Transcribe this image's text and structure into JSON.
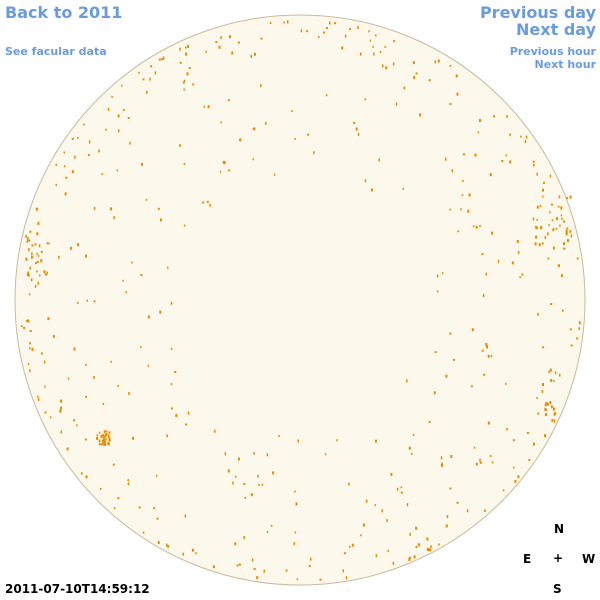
{
  "navigation": {
    "back": "Back to 2011",
    "facular": "See facular data",
    "previous_day": "Previous day",
    "next_day": "Next day",
    "previous_hour": "Previous hour",
    "next_hour": "Next hour"
  },
  "compass": {
    "north": "N",
    "east": "E",
    "center": "+",
    "west": "W",
    "south": "S"
  },
  "timestamp": "2011-07-10T14:59:12"
}
